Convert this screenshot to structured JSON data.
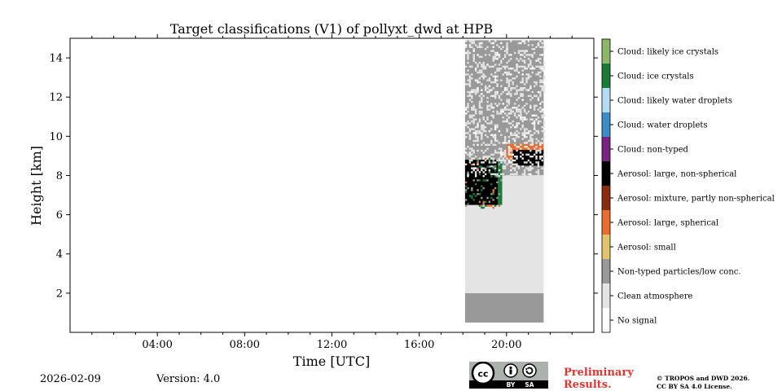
{
  "chart_data": {
    "type": "heatmap",
    "title": "Target classifications (V1) of pollyxt_dwd at HPB",
    "xlabel": "Time [UTC]",
    "ylabel": "Height [km]",
    "xlim": [
      0,
      24
    ],
    "ylim": [
      0,
      15
    ],
    "x_ticks": [
      4,
      8,
      12,
      16,
      20
    ],
    "x_tick_labels": [
      "04:00",
      "08:00",
      "12:00",
      "16:00",
      "20:00"
    ],
    "y_ticks": [
      2,
      4,
      6,
      8,
      10,
      12,
      14
    ],
    "y_tick_labels": [
      "2",
      "4",
      "6",
      "8",
      "10",
      "12",
      "14"
    ],
    "data_extent": {
      "time_start": 18.1,
      "time_end": 21.7,
      "height_min": 0.5,
      "height_max": 14.9
    },
    "regions": [
      {
        "class": "Non-typed particles/low conc.",
        "t0": 18.1,
        "t1": 21.7,
        "h0": 0.5,
        "h1": 2.0
      },
      {
        "class": "Clean atmosphere",
        "t0": 18.1,
        "t1": 21.7,
        "h0": 2.0,
        "h1": 8.0
      },
      {
        "class": "Non-typed particles/low conc.",
        "t0": 18.1,
        "t1": 21.7,
        "h0": 8.0,
        "h1": 14.9
      },
      {
        "class": "Cloud: ice crystals",
        "t0": 18.1,
        "t1": 19.8,
        "h0": 6.5,
        "h1": 8.8
      },
      {
        "class": "Aerosol: large, non-spherical",
        "t0": 18.1,
        "t1": 19.6,
        "h0": 6.5,
        "h1": 8.8
      },
      {
        "class": "Aerosol: large, spherical",
        "t0": 20.0,
        "t1": 21.7,
        "h0": 8.8,
        "h1": 9.6
      },
      {
        "class": "Aerosol: large, non-spherical",
        "t0": 20.3,
        "t1": 21.7,
        "h0": 8.5,
        "h1": 9.3
      }
    ],
    "legend": [
      {
        "label": "Cloud: likely ice crystals",
        "color": "#8cb86a"
      },
      {
        "label": "Cloud: ice crystals",
        "color": "#1a7a38"
      },
      {
        "label": "Cloud: likely water droplets",
        "color": "#b3dcf5"
      },
      {
        "label": "Cloud: water droplets",
        "color": "#3c8cc8"
      },
      {
        "label": "Cloud: non-typed",
        "color": "#7a2382"
      },
      {
        "label": "Aerosol: large, non-spherical",
        "color": "#000000"
      },
      {
        "label": "Aerosol: mixture, partly non-spherical",
        "color": "#8a2b0e"
      },
      {
        "label": "Aerosol: large, spherical",
        "color": "#e86d2e"
      },
      {
        "label": "Aerosol: small",
        "color": "#e3c46c"
      },
      {
        "label": "Non-typed particles/low conc.",
        "color": "#999999"
      },
      {
        "label": "Clean atmosphere",
        "color": "#e4e4e4"
      },
      {
        "label": "No signal",
        "color": "#ffffff"
      }
    ]
  },
  "footer": {
    "date": "2026-02-09",
    "version": "Version: 4.0",
    "preliminary_line1": "Preliminary",
    "preliminary_line2": "Results.",
    "copyright_line1": "© TROPOS and DWD 2026.",
    "copyright_line2": "CC BY SA 4.0 License.",
    "cc_badge": "cc",
    "cc_by": "BY",
    "cc_sa": "SA"
  }
}
